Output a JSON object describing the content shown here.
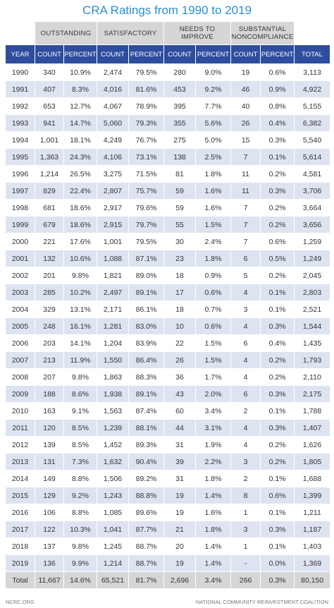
{
  "header": {
    "title": "CRA Ratings from 1990 to 2019"
  },
  "table": {
    "groups": [
      "OUTSTANDING",
      "SATISFACTORY",
      "NEEDS TO IMPROVE",
      "SUBSTANTIAL NONCOMPLIANCE"
    ],
    "columns": [
      "YEAR",
      "COUNT",
      "PERCENT",
      "COUNT",
      "PERCENT",
      "COUNT",
      "PERCENT",
      "COUNT",
      "PERCENT",
      "TOTAL"
    ],
    "rows": [
      [
        "1990",
        "340",
        "10.9%",
        "2,474",
        "79.5%",
        "280",
        "9.0%",
        "19",
        "0.6%",
        "3,113"
      ],
      [
        "1991",
        "407",
        "8.3%",
        "4,016",
        "81.6%",
        "453",
        "9.2%",
        "46",
        "0.9%",
        "4,922"
      ],
      [
        "1992",
        "653",
        "12.7%",
        "4,067",
        "78.9%",
        "395",
        "7.7%",
        "40",
        "0.8%",
        "5,155"
      ],
      [
        "1993",
        "941",
        "14.7%",
        "5,060",
        "79.3%",
        "355",
        "5.6%",
        "26",
        "0.4%",
        "6,382"
      ],
      [
        "1994",
        "1,001",
        "18.1%",
        "4,249",
        "76.7%",
        "275",
        "5.0%",
        "15",
        "0.3%",
        "5,540"
      ],
      [
        "1995",
        "1,363",
        "24.3%",
        "4,106",
        "73.1%",
        "138",
        "2.5%",
        "7",
        "0.1%",
        "5,614"
      ],
      [
        "1996",
        "1,214",
        "26.5%",
        "3,275",
        "71.5%",
        "81",
        "1.8%",
        "11",
        "0.2%",
        "4,581"
      ],
      [
        "1997",
        "829",
        "22.4%",
        "2,807",
        "75.7%",
        "59",
        "1.6%",
        "11",
        "0.3%",
        "3,706"
      ],
      [
        "1998",
        "681",
        "18.6%",
        "2,917",
        "79.6%",
        "59",
        "1.6%",
        "7",
        "0.2%",
        "3,664"
      ],
      [
        "1999",
        "679",
        "18.6%",
        "2,915",
        "79.7%",
        "55",
        "1.5%",
        "7",
        "0.2%",
        "3,656"
      ],
      [
        "2000",
        "221",
        "17.6%",
        "1,001",
        "79.5%",
        "30",
        "2.4%",
        "7",
        "0.6%",
        "1,259"
      ],
      [
        "2001",
        "132",
        "10.6%",
        "1,088",
        "87.1%",
        "23",
        "1.8%",
        "6",
        "0.5%",
        "1,249"
      ],
      [
        "2002",
        "201",
        "9.8%",
        "1,821",
        "89.0%",
        "18",
        "0.9%",
        "5",
        "0.2%",
        "2,045"
      ],
      [
        "2003",
        "285",
        "10.2%",
        "2,497",
        "89.1%",
        "17",
        "0.6%",
        "4",
        "0.1%",
        "2,803"
      ],
      [
        "2004",
        "329",
        "13.1%",
        "2,171",
        "86.1%",
        "18",
        "0.7%",
        "3",
        "0.1%",
        "2,521"
      ],
      [
        "2005",
        "248",
        "16.1%",
        "1,281",
        "83.0%",
        "10",
        "0.6%",
        "4",
        "0.3%",
        "1,544"
      ],
      [
        "2006",
        "203",
        "14.1%",
        "1,204",
        "83.9%",
        "22",
        "1.5%",
        "6",
        "0.4%",
        "1,435"
      ],
      [
        "2007",
        "213",
        "11.9%",
        "1,550",
        "86.4%",
        "26",
        "1.5%",
        "4",
        "0.2%",
        "1,793"
      ],
      [
        "2008",
        "207",
        "9.8%",
        "1,863",
        "88.3%",
        "36",
        "1.7%",
        "4",
        "0.2%",
        "2,110"
      ],
      [
        "2009",
        "188",
        "8.6%",
        "1,938",
        "89.1%",
        "43",
        "2.0%",
        "6",
        "0.3%",
        "2,175"
      ],
      [
        "2010",
        "163",
        "9.1%",
        "1,563",
        "87.4%",
        "60",
        "3.4%",
        "2",
        "0.1%",
        "1,788"
      ],
      [
        "2011",
        "120",
        "8.5%",
        "1,239",
        "88.1%",
        "44",
        "3.1%",
        "4",
        "0.3%",
        "1,407"
      ],
      [
        "2012",
        "139",
        "8.5%",
        "1,452",
        "89.3%",
        "31",
        "1.9%",
        "4",
        "0.2%",
        "1,626"
      ],
      [
        "2013",
        "131",
        "7.3%",
        "1,632",
        "90.4%",
        "39",
        "2.2%",
        "3",
        "0.2%",
        "1,805"
      ],
      [
        "2014",
        "149",
        "8.8%",
        "1,506",
        "89.2%",
        "31",
        "1.8%",
        "2",
        "0.1%",
        "1,688"
      ],
      [
        "2015",
        "129",
        "9.2%",
        "1,243",
        "88.8%",
        "19",
        "1.4%",
        "8",
        "0.6%",
        "1,399"
      ],
      [
        "2016",
        "106",
        "8.8%",
        "1,085",
        "89.6%",
        "19",
        "1.6%",
        "1",
        "0.1%",
        "1,211"
      ],
      [
        "2017",
        "122",
        "10.3%",
        "1,041",
        "87.7%",
        "21",
        "1.8%",
        "3",
        "0.3%",
        "1,187"
      ],
      [
        "2018",
        "137",
        "9.8%",
        "1,245",
        "88.7%",
        "20",
        "1.4%",
        "1",
        "0.1%",
        "1,403"
      ],
      [
        "2019",
        "136",
        "9.9%",
        "1,214",
        "88.7%",
        "19",
        "1.4%",
        "-",
        "0.0%",
        "1,369"
      ]
    ],
    "total": [
      "Total",
      "11,667",
      "14.6%",
      "65,521",
      "81.7%",
      "2,696",
      "3.4%",
      "266",
      "0.3%",
      "80,150"
    ]
  },
  "footer": {
    "left": "NCRC.ORG",
    "right": "NATIONAL COMMUNITY REINVESTMENT COALITION"
  }
}
